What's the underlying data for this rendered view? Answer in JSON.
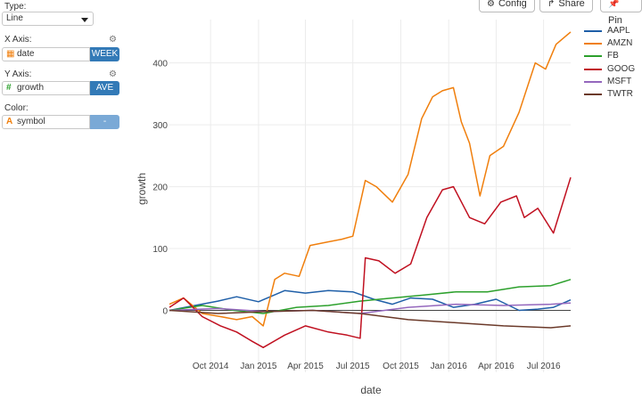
{
  "controls": {
    "type_label": "Type:",
    "type_value": "Line",
    "xaxis_label": "X Axis:",
    "xaxis_field": "date",
    "xaxis_agg": "WEEK",
    "yaxis_label": "Y Axis:",
    "yaxis_field": "growth",
    "yaxis_agg": "AVE",
    "color_label": "Color:",
    "color_field": "symbol",
    "color_agg": "-"
  },
  "toolbar": {
    "config_label": "Config",
    "share_label": "Share",
    "pin_label": "Pin"
  },
  "icons": {
    "type_dropdown": "chevron-down-icon",
    "xaxis_field": "calendar-icon",
    "yaxis_field": "hash-icon",
    "color_field": "text-type-icon",
    "axis_settings": "gear-icon",
    "config": "gear-icon",
    "share": "share-arrow-icon",
    "pin": "pin-icon"
  },
  "chart_data": {
    "type": "line",
    "xlabel": "date",
    "ylabel": "growth",
    "ylim": [
      -100,
      470
    ],
    "xlim": [
      "2014-07-14",
      "2016-08-22"
    ],
    "y_ticks": [
      0,
      100,
      200,
      300,
      400
    ],
    "x_ticks": [
      {
        "date": "2014-10-01",
        "label": "Oct 2014"
      },
      {
        "date": "2015-01-01",
        "label": "Jan 2015"
      },
      {
        "date": "2015-04-01",
        "label": "Apr 2015"
      },
      {
        "date": "2015-07-01",
        "label": "Jul 2015"
      },
      {
        "date": "2015-10-01",
        "label": "Oct 2015"
      },
      {
        "date": "2016-01-01",
        "label": "Jan 2016"
      },
      {
        "date": "2016-04-01",
        "label": "Apr 2016"
      },
      {
        "date": "2016-07-01",
        "label": "Jul 2016"
      }
    ],
    "grid": true,
    "legend_position": "right",
    "series": [
      {
        "name": "AAPL",
        "color": "#1f5fa8",
        "x": [
          "2014-07-14",
          "2014-09-01",
          "2014-10-15",
          "2014-11-20",
          "2015-01-01",
          "2015-02-20",
          "2015-04-01",
          "2015-05-15",
          "2015-07-01",
          "2015-08-10",
          "2015-09-15",
          "2015-10-20",
          "2015-12-01",
          "2016-01-10",
          "2016-02-20",
          "2016-04-01",
          "2016-05-15",
          "2016-06-20",
          "2016-07-20",
          "2016-08-22"
        ],
        "y": [
          0,
          8,
          15,
          22,
          14,
          32,
          28,
          32,
          30,
          18,
          10,
          20,
          18,
          5,
          10,
          18,
          0,
          2,
          5,
          17
        ]
      },
      {
        "name": "AMZN",
        "color": "#f07f0d",
        "x": [
          "2014-07-14",
          "2014-08-10",
          "2014-09-15",
          "2014-10-20",
          "2014-11-20",
          "2014-12-20",
          "2015-01-10",
          "2015-02-01",
          "2015-02-20",
          "2015-03-20",
          "2015-04-10",
          "2015-05-10",
          "2015-06-10",
          "2015-07-01",
          "2015-07-25",
          "2015-08-15",
          "2015-09-15",
          "2015-10-15",
          "2015-11-10",
          "2015-12-01",
          "2015-12-20",
          "2016-01-10",
          "2016-01-25",
          "2016-02-10",
          "2016-03-01",
          "2016-03-20",
          "2016-04-15",
          "2016-05-15",
          "2016-06-15",
          "2016-07-05",
          "2016-07-25",
          "2016-08-22"
        ],
        "y": [
          10,
          20,
          -5,
          -10,
          -15,
          -10,
          -25,
          50,
          60,
          55,
          105,
          110,
          115,
          120,
          210,
          200,
          175,
          220,
          310,
          345,
          355,
          360,
          305,
          270,
          185,
          250,
          265,
          320,
          400,
          390,
          430,
          450
        ]
      },
      {
        "name": "FB",
        "color": "#2ca02c",
        "x": [
          "2014-07-14",
          "2014-09-15",
          "2014-11-15",
          "2015-01-10",
          "2015-03-15",
          "2015-05-15",
          "2015-07-15",
          "2015-09-15",
          "2015-11-15",
          "2016-01-15",
          "2016-03-15",
          "2016-05-15",
          "2016-07-15",
          "2016-08-22"
        ],
        "y": [
          0,
          8,
          0,
          -5,
          5,
          8,
          15,
          20,
          25,
          30,
          30,
          38,
          40,
          50
        ]
      },
      {
        "name": "GOOG",
        "color": "#c01020",
        "x": [
          "2014-07-14",
          "2014-08-10",
          "2014-09-15",
          "2014-10-20",
          "2014-11-20",
          "2014-12-20",
          "2015-01-10",
          "2015-02-20",
          "2015-04-01",
          "2015-05-15",
          "2015-06-20",
          "2015-07-15",
          "2015-07-25",
          "2015-08-20",
          "2015-09-20",
          "2015-10-20",
          "2015-11-20",
          "2015-12-20",
          "2016-01-10",
          "2016-02-10",
          "2016-03-10",
          "2016-04-10",
          "2016-05-10",
          "2016-05-25",
          "2016-06-20",
          "2016-07-20",
          "2016-08-22"
        ],
        "y": [
          5,
          20,
          -10,
          -25,
          -35,
          -50,
          -60,
          -40,
          -25,
          -35,
          -40,
          -45,
          85,
          80,
          60,
          75,
          150,
          195,
          200,
          150,
          140,
          175,
          185,
          150,
          165,
          125,
          215
        ]
      },
      {
        "name": "MSFT",
        "color": "#9467bd",
        "x": [
          "2014-07-14",
          "2014-10-15",
          "2015-01-15",
          "2015-04-15",
          "2015-07-15",
          "2015-10-15",
          "2016-01-15",
          "2016-04-15",
          "2016-07-15",
          "2016-08-22"
        ],
        "y": [
          0,
          3,
          -2,
          0,
          -5,
          5,
          10,
          8,
          10,
          12
        ]
      },
      {
        "name": "TWTR",
        "color": "#6b3a2a",
        "x": [
          "2014-07-14",
          "2014-10-15",
          "2015-01-15",
          "2015-04-15",
          "2015-07-15",
          "2015-10-15",
          "2016-01-15",
          "2016-04-15",
          "2016-07-15",
          "2016-08-22"
        ],
        "y": [
          0,
          -5,
          -2,
          0,
          -5,
          -15,
          -20,
          -25,
          -28,
          -25
        ]
      }
    ]
  }
}
